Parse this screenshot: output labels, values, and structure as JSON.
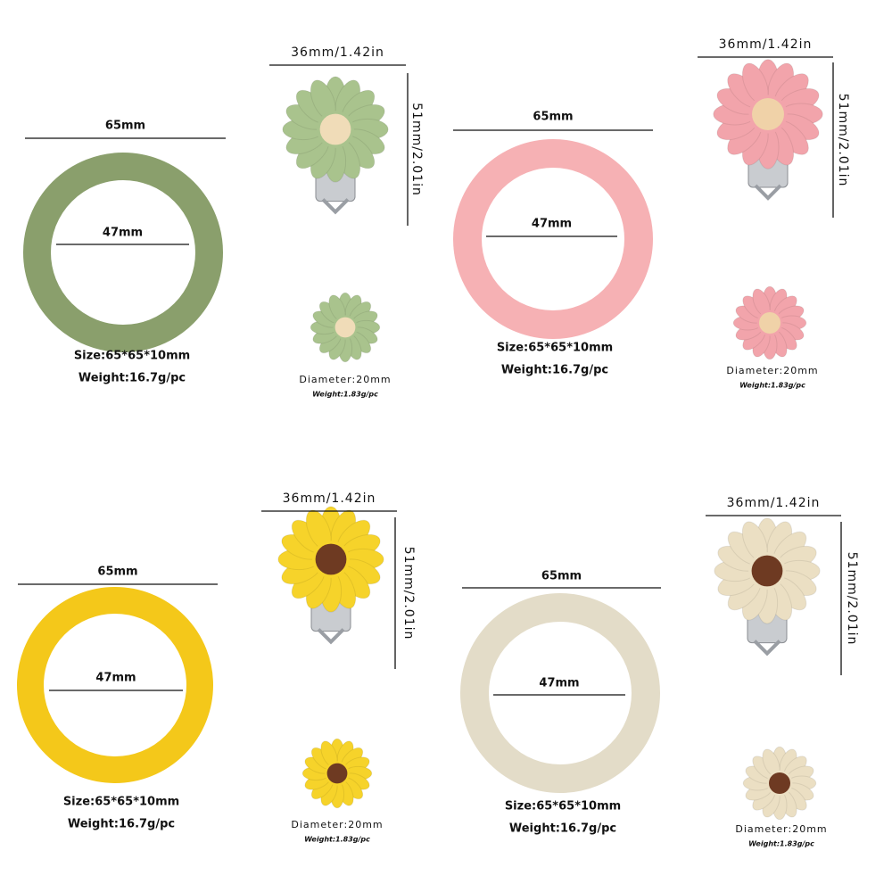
{
  "panels": [
    {
      "ring": {
        "outer_diameter": "65mm",
        "inner_diameter": "47mm",
        "size": "Size:65*65*10mm",
        "weight": "Weight:16.7g/pc"
      },
      "clip": {
        "width": "36mm/1.42in",
        "height": "51mm/2.01in"
      },
      "bead": {
        "diameter": "Diameter:20mm",
        "weight": "Weight:1.83g/pc"
      }
    },
    {
      "ring": {
        "outer_diameter": "65mm",
        "inner_diameter": "47mm",
        "size": "Size:65*65*10mm",
        "weight": "Weight:16.7g/pc"
      },
      "clip": {
        "width": "36mm/1.42in",
        "height": "51mm/2.01in"
      },
      "bead": {
        "diameter": "Diameter:20mm",
        "weight": "Weight:1.83g/pc"
      }
    },
    {
      "ring": {
        "outer_diameter": "65mm",
        "inner_diameter": "47mm",
        "size": "Size:65*65*10mm",
        "weight": "Weight:16.7g/pc"
      },
      "clip": {
        "width": "36mm/1.42in",
        "height": "51mm/2.01in"
      },
      "bead": {
        "diameter": "Diameter:20mm",
        "weight": "Weight:1.83g/pc"
      }
    },
    {
      "ring": {
        "outer_diameter": "65mm",
        "inner_diameter": "47mm",
        "size": "Size:65*65*10mm",
        "weight": "Weight:16.7g/pc"
      },
      "clip": {
        "width": "36mm/1.42in",
        "height": "51mm/2.01in"
      },
      "bead": {
        "diameter": "Diameter:20mm",
        "weight": "Weight:1.83g/pc"
      }
    }
  ]
}
